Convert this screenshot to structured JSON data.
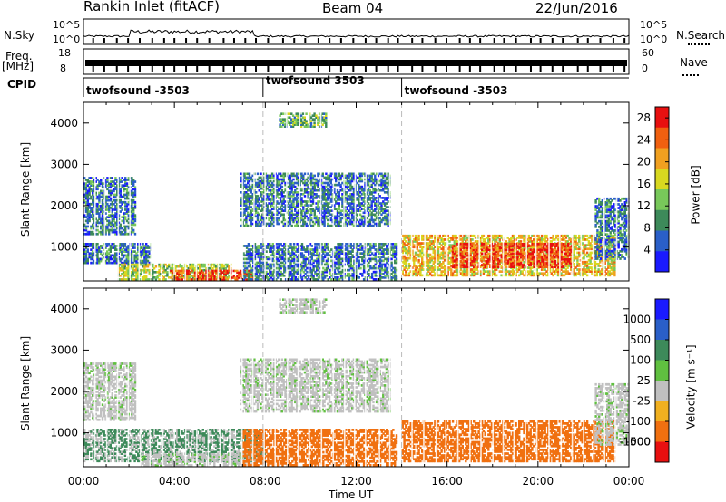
{
  "header": {
    "title": "Rankin Inlet (fitACF)",
    "beam": "Beam 04",
    "date": "22/Jun/2016"
  },
  "strip": {
    "nsky_label": "N.Sky",
    "nsky_ticks": [
      "10^5",
      "10^0"
    ],
    "nsearch_label": "N.Search",
    "nsearch_ticks": [
      "10^5",
      "10^0"
    ],
    "freq_label": "Freq.",
    "freq_unit": "[MHz]",
    "freq_ticks": [
      "18",
      "8"
    ],
    "nave_label": "Nave",
    "nave_ticks": [
      "60",
      "0"
    ],
    "cpid_label": "CPID",
    "cpid_segments": [
      {
        "label": "twofsound -3503",
        "start_hour": 0.0,
        "end_hour": 7.9
      },
      {
        "label": "twofsound 3503",
        "start_hour": 7.9,
        "end_hour": 14.0
      },
      {
        "label": "twofsound -3503",
        "start_hour": 14.0,
        "end_hour": 24.0
      }
    ]
  },
  "chart_data": [
    {
      "type": "heatmap",
      "title": "",
      "quantity": "Power",
      "xlabel": "",
      "ylabel": "Slant Range [km]",
      "xlim_hours": [
        0,
        24
      ],
      "ylim_km": [
        180,
        4500
      ],
      "yticks": [
        "1000",
        "2000",
        "3000",
        "4000"
      ],
      "colorbar": {
        "label": "Power [dB]",
        "ticks": [
          "4",
          "8",
          "12",
          "16",
          "20",
          "24",
          "28"
        ],
        "range": [
          0,
          30
        ],
        "colors": [
          "#1a1aff",
          "#2a5fc8",
          "#3d8a5a",
          "#78c85a",
          "#d8d820",
          "#f0a020",
          "#f06010",
          "#e81010"
        ]
      },
      "regions": [
        {
          "start_hour": 0.0,
          "end_hour": 2.3,
          "range_km": [
            1300,
            2700
          ],
          "level": 10
        },
        {
          "start_hour": 0.0,
          "end_hour": 3.0,
          "range_km": [
            600,
            1100
          ],
          "level": 8
        },
        {
          "start_hour": 1.5,
          "end_hour": 6.5,
          "range_km": [
            200,
            600
          ],
          "level": 18
        },
        {
          "start_hour": 3.8,
          "end_hour": 7.5,
          "range_km": [
            200,
            450
          ],
          "level": 28
        },
        {
          "start_hour": 7.0,
          "end_hour": 13.8,
          "range_km": [
            200,
            1100
          ],
          "level": 8
        },
        {
          "start_hour": 6.9,
          "end_hour": 13.5,
          "range_km": [
            1500,
            2800
          ],
          "level": 10
        },
        {
          "start_hour": 8.6,
          "end_hour": 10.7,
          "range_km": [
            3900,
            4250
          ],
          "level": 14
        },
        {
          "start_hour": 14.0,
          "end_hour": 23.4,
          "range_km": [
            300,
            1300
          ],
          "level": 20
        },
        {
          "start_hour": 16.2,
          "end_hour": 21.5,
          "range_km": [
            500,
            1100
          ],
          "level": 27
        },
        {
          "start_hour": 22.5,
          "end_hour": 24.0,
          "range_km": [
            700,
            2200
          ],
          "level": 10
        }
      ]
    },
    {
      "type": "heatmap",
      "title": "",
      "quantity": "Velocity",
      "xlabel": "Time UT",
      "ylabel": "Slant Range [km]",
      "xlim_hours": [
        0,
        24
      ],
      "ylim_km": [
        180,
        4500
      ],
      "xticks": [
        "00:00",
        "04:00",
        "08:00",
        "12:00",
        "16:00",
        "20:00",
        "00:00"
      ],
      "yticks": [
        "1000",
        "2000",
        "3000",
        "4000"
      ],
      "colorbar": {
        "label": "Velocity [m s⁻¹]",
        "ticks": [
          "1000",
          "500",
          "100",
          "25",
          "-25",
          "-100",
          "-500",
          "-1000"
        ],
        "colors": [
          "#1a1aff",
          "#2a5fc8",
          "#3d8a5a",
          "#60c040",
          "#c0c0c0",
          "#f0b020",
          "#f07010",
          "#e81010"
        ]
      },
      "regions": [
        {
          "start_hour": 0.0,
          "end_hour": 2.3,
          "range_km": [
            1300,
            2700
          ],
          "velocity": 0
        },
        {
          "start_hour": 0.0,
          "end_hour": 8.0,
          "range_km": [
            300,
            1100
          ],
          "velocity": 60
        },
        {
          "start_hour": 2.5,
          "end_hour": 7.5,
          "range_km": [
            200,
            500
          ],
          "velocity": 0
        },
        {
          "start_hour": 7.0,
          "end_hour": 13.8,
          "range_km": [
            200,
            1100
          ],
          "velocity": -150
        },
        {
          "start_hour": 6.9,
          "end_hour": 13.5,
          "range_km": [
            1500,
            2800
          ],
          "velocity": 0
        },
        {
          "start_hour": 8.6,
          "end_hour": 10.7,
          "range_km": [
            3900,
            4250
          ],
          "velocity": 0
        },
        {
          "start_hour": 14.0,
          "end_hour": 23.4,
          "range_km": [
            300,
            1300
          ],
          "velocity": -300
        },
        {
          "start_hour": 22.5,
          "end_hour": 24.0,
          "range_km": [
            700,
            2200
          ],
          "velocity": 0
        }
      ]
    }
  ]
}
